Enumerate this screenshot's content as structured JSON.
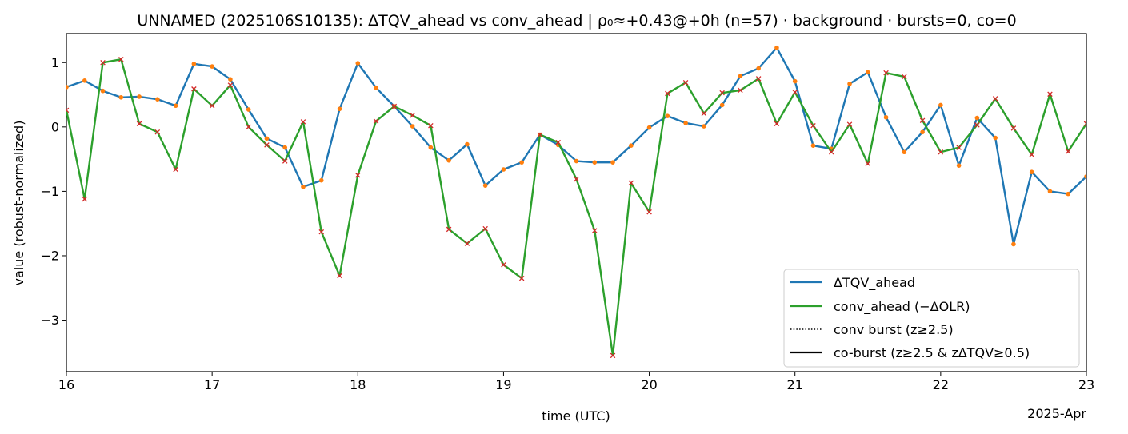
{
  "chart_data": {
    "type": "line",
    "title": "UNNAMED (2025106S10135): ΔTQV_ahead vs conv_ahead | ρ₀≈+0.43@+0h (n=57) · background · bursts=0, co=0",
    "xlabel": "time (UTC)",
    "ylabel": "value (robust-normalized)",
    "x_offset_label": "2025-Apr",
    "xlim": [
      "2025-04-16T00:00",
      "2025-04-23T00:00"
    ],
    "ylim": [
      -3.8,
      1.45
    ],
    "x_ticks": [
      {
        "value": "2025-04-16T00:00",
        "label": "16"
      },
      {
        "value": "2025-04-17T00:00",
        "label": "17"
      },
      {
        "value": "2025-04-18T00:00",
        "label": "18"
      },
      {
        "value": "2025-04-19T00:00",
        "label": "19"
      },
      {
        "value": "2025-04-20T00:00",
        "label": "20"
      },
      {
        "value": "2025-04-21T00:00",
        "label": "21"
      },
      {
        "value": "2025-04-22T00:00",
        "label": "22"
      },
      {
        "value": "2025-04-23T00:00",
        "label": "23"
      }
    ],
    "y_ticks": [
      {
        "value": 1,
        "label": "1"
      },
      {
        "value": 0,
        "label": "0"
      },
      {
        "value": -1,
        "label": "−1"
      },
      {
        "value": -2,
        "label": "−2"
      },
      {
        "value": -3,
        "label": "−3"
      }
    ],
    "grid": false,
    "legend_position": "lower-right",
    "legend": [
      {
        "label": "ΔTQV_ahead",
        "color": "#1f77b4",
        "style": "solid"
      },
      {
        "label": "conv_ahead (−ΔOLR)",
        "color": "#2ca02c",
        "style": "solid"
      },
      {
        "label": "conv burst (z≥2.5)",
        "color": "#000000",
        "style": "dotted"
      },
      {
        "label": "co-burst (z≥2.5 & zΔTQV≥0.5)",
        "color": "#000000",
        "style": "solid"
      }
    ],
    "x": [
      "2025-04-16T00:00",
      "2025-04-16T03:00",
      "2025-04-16T06:00",
      "2025-04-16T09:00",
      "2025-04-16T12:00",
      "2025-04-16T15:00",
      "2025-04-16T18:00",
      "2025-04-16T21:00",
      "2025-04-17T00:00",
      "2025-04-17T03:00",
      "2025-04-17T06:00",
      "2025-04-17T09:00",
      "2025-04-17T12:00",
      "2025-04-17T15:00",
      "2025-04-17T18:00",
      "2025-04-17T21:00",
      "2025-04-18T00:00",
      "2025-04-18T03:00",
      "2025-04-18T06:00",
      "2025-04-18T09:00",
      "2025-04-18T12:00",
      "2025-04-18T15:00",
      "2025-04-18T18:00",
      "2025-04-18T21:00",
      "2025-04-19T00:00",
      "2025-04-19T03:00",
      "2025-04-19T06:00",
      "2025-04-19T09:00",
      "2025-04-19T12:00",
      "2025-04-19T15:00",
      "2025-04-19T18:00",
      "2025-04-19T21:00",
      "2025-04-20T00:00",
      "2025-04-20T03:00",
      "2025-04-20T06:00",
      "2025-04-20T09:00",
      "2025-04-20T12:00",
      "2025-04-20T15:00",
      "2025-04-20T18:00",
      "2025-04-20T21:00",
      "2025-04-21T00:00",
      "2025-04-21T03:00",
      "2025-04-21T06:00",
      "2025-04-21T09:00",
      "2025-04-21T12:00",
      "2025-04-21T15:00",
      "2025-04-21T18:00",
      "2025-04-21T21:00",
      "2025-04-22T00:00",
      "2025-04-22T03:00",
      "2025-04-22T06:00",
      "2025-04-22T09:00",
      "2025-04-22T12:00",
      "2025-04-22T15:00",
      "2025-04-22T18:00",
      "2025-04-22T21:00",
      "2025-04-23T00:00"
    ],
    "series": [
      {
        "name": "ΔTQV_ahead",
        "color": "#1f77b4",
        "marker_color": "#ff7f0e",
        "marker": "dot",
        "values": [
          0.62,
          0.72,
          0.56,
          0.46,
          0.47,
          0.43,
          0.33,
          0.98,
          0.94,
          0.74,
          0.27,
          -0.18,
          -0.32,
          -0.93,
          -0.83,
          0.28,
          0.99,
          0.61,
          0.32,
          0.01,
          -0.32,
          -0.52,
          -0.27,
          -0.91,
          -0.66,
          -0.55,
          -0.12,
          -0.28,
          -0.53,
          -0.55,
          -0.55,
          -0.29,
          -0.01,
          0.17,
          0.06,
          0.01,
          0.34,
          0.79,
          0.91,
          1.23,
          0.71,
          -0.29,
          -0.34,
          0.67,
          0.85,
          0.15,
          -0.39,
          -0.08,
          0.34,
          -0.6,
          0.14,
          -0.17,
          -1.82,
          -0.7,
          -1.0,
          -1.04,
          -0.77
        ]
      },
      {
        "name": "conv_ahead (−ΔOLR)",
        "color": "#2ca02c",
        "marker_color": "#d62728",
        "marker": "x",
        "values": [
          0.26,
          -1.12,
          1.0,
          1.05,
          0.05,
          -0.08,
          -0.66,
          0.59,
          0.33,
          0.65,
          0.0,
          -0.28,
          -0.53,
          0.08,
          -1.63,
          -2.31,
          -0.75,
          0.09,
          0.32,
          0.18,
          0.02,
          -1.59,
          -1.81,
          -1.58,
          -2.14,
          -2.35,
          -0.12,
          -0.24,
          -0.81,
          -1.61,
          -3.55,
          -0.87,
          -1.32,
          0.52,
          0.69,
          0.21,
          0.53,
          0.57,
          0.75,
          0.05,
          0.54,
          0.02,
          -0.39,
          0.04,
          -0.57,
          0.84,
          0.78,
          0.1,
          -0.39,
          -0.32,
          0.03,
          0.44,
          -0.02,
          -0.43,
          0.51,
          -0.38,
          0.05
        ]
      }
    ]
  }
}
